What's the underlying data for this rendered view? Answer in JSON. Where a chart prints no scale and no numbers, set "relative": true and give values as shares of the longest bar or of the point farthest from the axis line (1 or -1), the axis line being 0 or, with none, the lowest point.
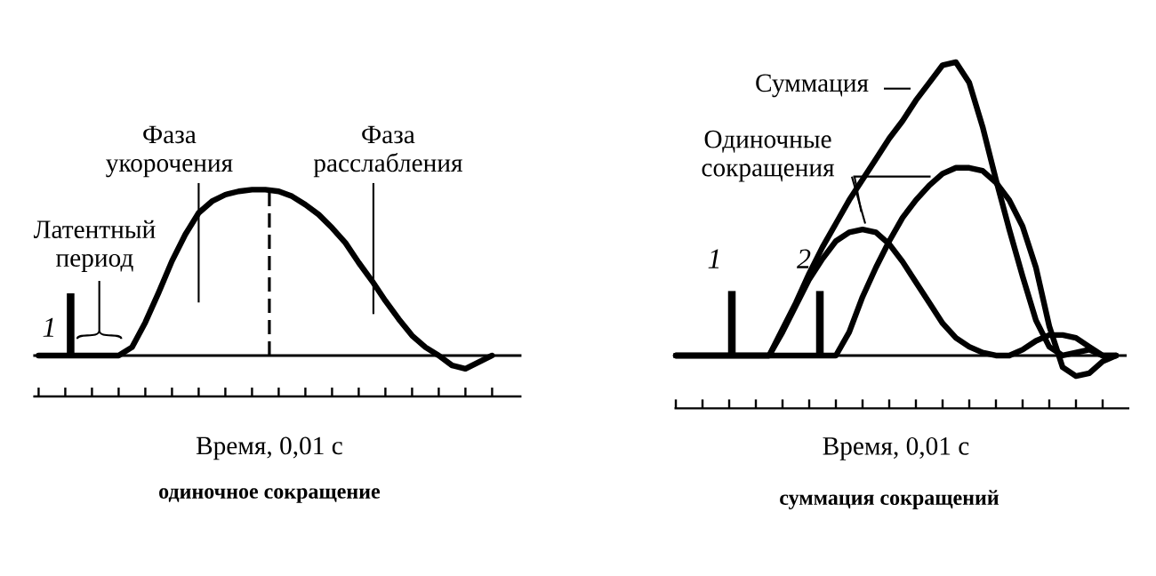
{
  "chart_data": [
    {
      "type": "line",
      "title": "одиночное сокращение",
      "xlabel": "Время, 0,01 с",
      "relative": true,
      "categories": [
        null,
        null,
        null,
        null,
        null,
        null,
        null,
        null,
        null,
        null,
        null,
        null,
        null,
        null,
        null,
        null,
        null,
        null,
        null,
        null,
        null,
        null,
        null,
        null,
        null,
        null,
        null,
        null,
        null,
        null,
        null,
        null,
        null,
        null,
        null
      ],
      "series": [
        {
          "color": "#000000",
          "values": [
            0,
            0,
            0,
            0,
            0,
            0,
            0,
            0.05,
            0.2,
            0.38,
            0.57,
            0.73,
            0.86,
            0.93,
            0.97,
            0.99,
            1.0,
            1.0,
            0.99,
            0.96,
            0.91,
            0.85,
            0.77,
            0.68,
            0.56,
            0.45,
            0.33,
            0.22,
            0.12,
            0.05,
            0,
            -0.06,
            -0.08,
            -0.04,
            0
          ]
        }
      ],
      "annotations": [
        "Латентный период",
        "Фаза укорочения",
        "Фаза расслабления",
        "1"
      ]
    },
    {
      "type": "line",
      "title": "суммация сокращений",
      "xlabel": "Время, 0,01 с",
      "relative": true,
      "categories": [
        null,
        null,
        null,
        null,
        null,
        null,
        null,
        null,
        null,
        null,
        null,
        null,
        null,
        null,
        null,
        null,
        null,
        null,
        null,
        null,
        null,
        null,
        null,
        null,
        null,
        null,
        null,
        null,
        null,
        null,
        null,
        null,
        null,
        null
      ],
      "series": [
        {
          "color": "#000000",
          "values": [
            0,
            0,
            0,
            0,
            0,
            0,
            0,
            0,
            0.09,
            0.18,
            0.28,
            0.37,
            0.45,
            0.53,
            0.6,
            0.67,
            0.74,
            0.8,
            0.87,
            0.93,
            0.99,
            1.0,
            0.93,
            0.78,
            0.6,
            0.43,
            0.27,
            0.12,
            0.03,
            0.0,
            0.01,
            0.02,
            0,
            0
          ]
        },
        {
          "color": "#000000",
          "values": [
            0,
            0,
            0,
            0,
            0,
            0,
            0,
            0,
            0.08,
            0.17,
            0.26,
            0.33,
            0.39,
            0.42,
            0.43,
            0.42,
            0.38,
            0.32,
            0.25,
            0.18,
            0.11,
            0.06,
            0.03,
            0.01,
            0,
            0,
            0.02,
            0.05,
            0.07,
            0.07,
            0.06,
            0.03,
            0,
            0
          ]
        },
        {
          "color": "#000000",
          "values": [
            0,
            0,
            0,
            0,
            0,
            0,
            0,
            0,
            0,
            0,
            0,
            0,
            0,
            0.08,
            0.2,
            0.3,
            0.39,
            0.47,
            0.53,
            0.58,
            0.62,
            0.64,
            0.64,
            0.63,
            0.59,
            0.53,
            0.44,
            0.3,
            0.1,
            -0.04,
            -0.07,
            -0.06,
            -0.02,
            0
          ]
        }
      ],
      "annotations": [
        "Суммация",
        "Одиночные сокращения",
        "1",
        "2"
      ]
    }
  ]
}
